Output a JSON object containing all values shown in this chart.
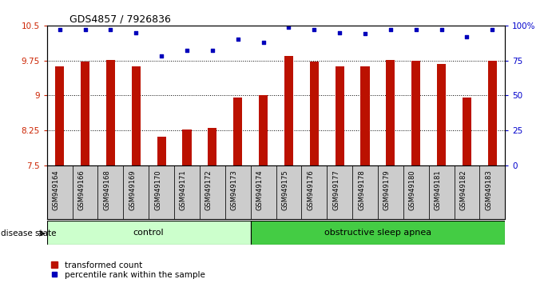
{
  "title": "GDS4857 / 7926836",
  "samples": [
    "GSM949164",
    "GSM949166",
    "GSM949168",
    "GSM949169",
    "GSM949170",
    "GSM949171",
    "GSM949172",
    "GSM949173",
    "GSM949174",
    "GSM949175",
    "GSM949176",
    "GSM949177",
    "GSM949178",
    "GSM949179",
    "GSM949180",
    "GSM949181",
    "GSM949182",
    "GSM949183"
  ],
  "bar_values": [
    9.62,
    9.72,
    9.76,
    9.62,
    8.12,
    8.28,
    8.3,
    8.95,
    9.0,
    9.85,
    9.72,
    9.62,
    9.62,
    9.76,
    9.75,
    9.68,
    8.95,
    9.75
  ],
  "dot_values_pct": [
    97,
    97,
    97,
    95,
    78,
    82,
    82,
    90,
    88,
    99,
    97,
    95,
    94,
    97,
    97,
    97,
    92,
    97
  ],
  "ylim_left": [
    7.5,
    10.5
  ],
  "ylim_right": [
    0,
    100
  ],
  "yticks_left": [
    7.5,
    8.25,
    9.0,
    9.75,
    10.5
  ],
  "ytick_labels_left": [
    "7.5",
    "8.25",
    "9",
    "9.75",
    "10.5"
  ],
  "yticks_right": [
    0,
    25,
    50,
    75,
    100
  ],
  "ytick_labels_right": [
    "0",
    "25",
    "50",
    "75",
    "100%"
  ],
  "control_count": 8,
  "bar_color": "#bb1100",
  "dot_color": "#0000bb",
  "control_color": "#ccffcc",
  "apnea_color": "#44cc44",
  "control_label": "control",
  "apnea_label": "obstructive sleep apnea",
  "disease_state_label": "disease state",
  "legend_bar_label": "transformed count",
  "legend_dot_label": "percentile rank within the sample",
  "label_color_left": "#cc2200",
  "label_color_right": "#0000cc",
  "tick_label_bg": "#cccccc",
  "bg_color": "#ffffff"
}
